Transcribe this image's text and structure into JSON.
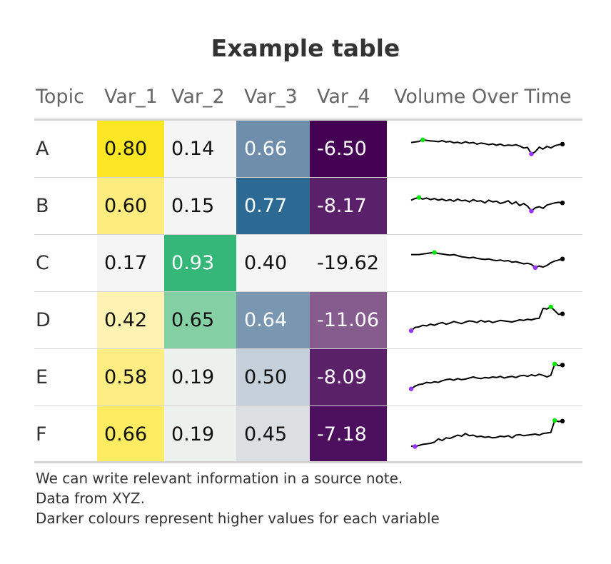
{
  "title": "Example table",
  "columns": [
    "Topic",
    "Var_1",
    "Var_2",
    "Var_3",
    "Var_4",
    "Volume Over Time"
  ],
  "rows": [
    {
      "topic": "A",
      "var_1": "0.80",
      "var_2": "0.14",
      "var_3": "0.66",
      "var_4": "-6.50",
      "colors": {
        "var_1": "#fde725",
        "var_2": "#f5f5f5",
        "var_3": "#6e8eab",
        "var_4": "#440154"
      },
      "text_colors": {
        "var_1": "#111111",
        "var_2": "#111111",
        "var_3": "#ffffff",
        "var_4": "#ffffff"
      }
    },
    {
      "topic": "B",
      "var_1": "0.60",
      "var_2": "0.15",
      "var_3": "0.77",
      "var_4": "-8.17",
      "colors": {
        "var_1": "#feec7e",
        "var_2": "#f3f4f3",
        "var_3": "#2d6a93",
        "var_4": "#5a2069"
      },
      "text_colors": {
        "var_1": "#111111",
        "var_2": "#111111",
        "var_3": "#ffffff",
        "var_4": "#ffffff"
      }
    },
    {
      "topic": "C",
      "var_1": "0.17",
      "var_2": "0.93",
      "var_3": "0.40",
      "var_4": "-19.62",
      "colors": {
        "var_1": "#f5f5f5",
        "var_2": "#35b779",
        "var_3": "#f5f5f5",
        "var_4": "#f5f5f5"
      },
      "text_colors": {
        "var_1": "#111111",
        "var_2": "#ffffff",
        "var_3": "#111111",
        "var_4": "#111111"
      }
    },
    {
      "topic": "D",
      "var_1": "0.42",
      "var_2": "0.65",
      "var_3": "0.64",
      "var_4": "-11.06",
      "colors": {
        "var_1": "#fff2b2",
        "var_2": "#85cfa5",
        "var_3": "#7a97b1",
        "var_4": "#855c8d"
      },
      "text_colors": {
        "var_1": "#111111",
        "var_2": "#111111",
        "var_3": "#ffffff",
        "var_4": "#ffffff"
      }
    },
    {
      "topic": "E",
      "var_1": "0.58",
      "var_2": "0.19",
      "var_3": "0.50",
      "var_4": "-8.09",
      "colors": {
        "var_1": "#feed82",
        "var_2": "#edf1ee",
        "var_3": "#c6d0da",
        "var_4": "#5a2068"
      },
      "text_colors": {
        "var_1": "#111111",
        "var_2": "#111111",
        "var_3": "#111111",
        "var_4": "#ffffff"
      }
    },
    {
      "topic": "F",
      "var_1": "0.66",
      "var_2": "0.19",
      "var_3": "0.45",
      "var_4": "-7.18",
      "colors": {
        "var_1": "#fdeb62",
        "var_2": "#edf1ee",
        "var_3": "#dcdfe2",
        "var_4": "#4c0f5e"
      },
      "text_colors": {
        "var_1": "#111111",
        "var_2": "#111111",
        "var_3": "#111111",
        "var_4": "#ffffff"
      }
    }
  ],
  "sparkline_colors": {
    "line": "#000000",
    "max": "#00e600",
    "min": "#9933ff",
    "end": "#000000"
  },
  "notes": [
    "We can write relevant information in a source note.",
    "Data from XYZ.",
    "Darker colours represent higher values for each variable"
  ],
  "chart_data": {
    "type": "table",
    "title": "Example table",
    "columns": [
      "Topic",
      "Var_1",
      "Var_2",
      "Var_3",
      "Var_4",
      "Volume Over Time"
    ],
    "series": [
      {
        "topic": "A",
        "values": [
          0.8,
          0.14,
          0.66,
          -6.5
        ],
        "volume": [
          0.72,
          0.74,
          0.76,
          0.82,
          0.8,
          0.78,
          0.77,
          0.75,
          0.79,
          0.74,
          0.76,
          0.71,
          0.73,
          0.69,
          0.75,
          0.7,
          0.72,
          0.66,
          0.7,
          0.68,
          0.64,
          0.67,
          0.62,
          0.66,
          0.6,
          0.63,
          0.61,
          0.64,
          0.59,
          0.52,
          0.54,
          0.3,
          0.38,
          0.55,
          0.48,
          0.58,
          0.52,
          0.6,
          0.64,
          0.66
        ]
      },
      {
        "topic": "B",
        "values": [
          0.6,
          0.15,
          0.77,
          -8.17
        ],
        "volume": [
          0.7,
          0.76,
          0.8,
          0.74,
          0.78,
          0.72,
          0.76,
          0.7,
          0.74,
          0.68,
          0.72,
          0.66,
          0.74,
          0.68,
          0.7,
          0.64,
          0.72,
          0.66,
          0.68,
          0.6,
          0.7,
          0.64,
          0.66,
          0.58,
          0.62,
          0.68,
          0.56,
          0.64,
          0.5,
          0.58,
          0.48,
          0.3,
          0.42,
          0.46,
          0.4,
          0.52,
          0.56,
          0.6,
          0.62,
          0.6
        ]
      },
      {
        "topic": "C",
        "values": [
          0.17,
          0.93,
          0.4,
          -19.62
        ],
        "volume": [
          0.8,
          0.8,
          0.8,
          0.82,
          0.84,
          0.86,
          0.88,
          0.84,
          0.82,
          0.8,
          0.78,
          0.8,
          0.76,
          0.72,
          0.7,
          0.68,
          0.7,
          0.66,
          0.64,
          0.62,
          0.64,
          0.6,
          0.58,
          0.6,
          0.56,
          0.58,
          0.52,
          0.54,
          0.5,
          0.46,
          0.48,
          0.44,
          0.32,
          0.38,
          0.34,
          0.4,
          0.5,
          0.56,
          0.6,
          0.64
        ]
      },
      {
        "topic": "D",
        "values": [
          0.42,
          0.65,
          0.64,
          -11.06
        ],
        "volume": [
          0.1,
          0.22,
          0.24,
          0.3,
          0.28,
          0.34,
          0.3,
          0.36,
          0.4,
          0.34,
          0.38,
          0.44,
          0.4,
          0.36,
          0.42,
          0.46,
          0.44,
          0.4,
          0.48,
          0.42,
          0.46,
          0.4,
          0.44,
          0.48,
          0.46,
          0.44,
          0.42,
          0.46,
          0.5,
          0.48,
          0.52,
          0.5,
          0.54,
          0.56,
          0.92,
          0.9,
          0.98,
          0.84,
          0.7,
          0.72
        ]
      },
      {
        "topic": "E",
        "values": [
          0.58,
          0.19,
          0.5,
          -8.09
        ],
        "volume": [
          0.06,
          0.16,
          0.22,
          0.24,
          0.3,
          0.28,
          0.32,
          0.3,
          0.36,
          0.4,
          0.42,
          0.38,
          0.44,
          0.4,
          0.42,
          0.46,
          0.5,
          0.46,
          0.44,
          0.48,
          0.46,
          0.5,
          0.48,
          0.52,
          0.46,
          0.5,
          0.52,
          0.48,
          0.54,
          0.56,
          0.52,
          0.58,
          0.54,
          0.6,
          0.56,
          0.5,
          0.56,
          0.98,
          0.92,
          0.94
        ]
      },
      {
        "topic": "F",
        "values": [
          0.66,
          0.19,
          0.45,
          -7.18
        ],
        "volume": [
          0.06,
          0.04,
          0.08,
          0.12,
          0.14,
          0.16,
          0.2,
          0.32,
          0.26,
          0.36,
          0.34,
          0.4,
          0.46,
          0.42,
          0.52,
          0.44,
          0.46,
          0.4,
          0.42,
          0.38,
          0.4,
          0.36,
          0.38,
          0.42,
          0.4,
          0.44,
          0.36,
          0.46,
          0.48,
          0.44,
          0.46,
          0.48,
          0.5,
          0.46,
          0.52,
          0.54,
          0.56,
          1.0,
          0.96,
          0.98
        ]
      }
    ],
    "grid": false
  }
}
